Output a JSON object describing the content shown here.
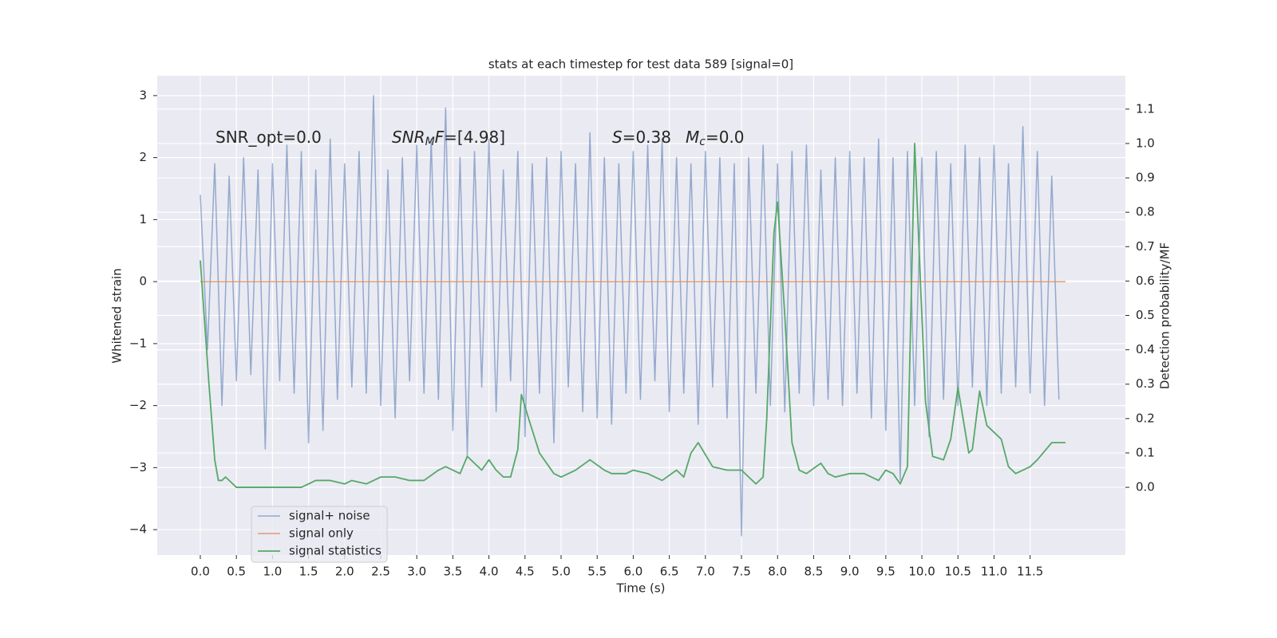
{
  "chart_data": {
    "type": "line",
    "title": "stats at each timestep for test data 589 [signal=0]",
    "xlabel": "Time (s)",
    "ylabel": "Whitened strain",
    "y2label": "Detection probability/MF",
    "annotations": [
      [
        "SNR_opt=0.0"
      ],
      [
        "SNR",
        "M",
        "F",
        "=[4.98]"
      ],
      [
        "S",
        "=0.38"
      ],
      [
        "M",
        "c",
        "=0.0"
      ]
    ],
    "grid": true,
    "legend": "lower left",
    "xlim": [
      -0.597,
      12.82
    ],
    "ylim": [
      -4.41,
      3.32
    ],
    "y2lim": [
      -0.197,
      1.197
    ],
    "xticks": [
      {
        "value": 0,
        "label": "0.0"
      },
      0.5,
      {
        "value": 1,
        "label": "1.0"
      },
      1.5,
      {
        "value": 2,
        "label": "2.0"
      },
      2.5,
      {
        "value": 3,
        "label": "3.0"
      },
      3.5,
      {
        "value": 4,
        "label": "4.0"
      },
      4.5,
      {
        "value": 5,
        "label": "5.0"
      },
      5.5,
      {
        "value": 6,
        "label": "6.0"
      },
      6.5,
      {
        "value": 7,
        "label": "7.0"
      },
      7.5,
      {
        "value": 8,
        "label": "8.0"
      },
      8.5,
      {
        "value": 9,
        "label": "9.0"
      },
      9.5,
      {
        "value": 10,
        "label": "10.0"
      },
      10.5,
      {
        "value": 11,
        "label": "11.0"
      },
      11.5
    ],
    "yticks": [
      {
        "value": -4,
        "label": "−4"
      },
      {
        "value": -3,
        "label": "−3"
      },
      {
        "value": -2,
        "label": "−2"
      },
      {
        "value": -1,
        "label": "−1"
      },
      0,
      1,
      2,
      3
    ],
    "y2ticks": [
      {
        "value": 0,
        "label": "0.0"
      },
      0.1,
      0.2,
      0.3,
      0.4,
      0.5,
      0.6,
      0.7,
      0.8,
      0.9,
      {
        "value": 1,
        "label": "1.0"
      },
      1.1
    ],
    "series": [
      {
        "name": "signal+ noise",
        "color": "#4c72b0",
        "x": [
          0,
          0.1,
          0.2,
          0.3,
          0.4,
          0.5,
          0.6,
          0.7,
          0.8,
          0.9,
          1,
          1.1,
          1.2,
          1.3,
          1.4,
          1.5,
          1.6,
          1.7,
          1.8,
          1.9,
          2,
          2.1,
          2.2,
          2.3,
          2.4,
          2.5,
          2.6,
          2.7,
          2.8,
          2.9,
          3,
          3.1,
          3.2,
          3.3,
          3.4,
          3.5,
          3.6,
          3.7,
          3.8,
          3.9,
          4,
          4.1,
          4.2,
          4.3,
          4.4,
          4.5,
          4.6,
          4.7,
          4.8,
          4.9,
          5,
          5.1,
          5.2,
          5.3,
          5.4,
          5.5,
          5.6,
          5.7,
          5.8,
          5.9,
          6,
          6.1,
          6.2,
          6.3,
          6.4,
          6.5,
          6.6,
          6.7,
          6.8,
          6.9,
          7,
          7.1,
          7.2,
          7.3,
          7.4,
          7.5,
          7.6,
          7.7,
          7.8,
          7.9,
          8,
          8.1,
          8.2,
          8.3,
          8.4,
          8.5,
          8.6,
          8.7,
          8.8,
          8.9,
          9,
          9.1,
          9.2,
          9.3,
          9.4,
          9.5,
          9.6,
          9.7,
          9.8,
          9.9,
          10,
          10.1,
          10.2,
          10.3,
          10.4,
          10.5,
          10.6,
          10.7,
          10.8,
          10.9,
          11,
          11.1,
          11.2,
          11.3,
          11.4,
          11.5,
          11.6,
          11.7,
          11.8,
          11.9
        ],
        "values": [
          1.4,
          -1.1,
          1.9,
          -2.0,
          1.7,
          -1.6,
          2.0,
          -1.5,
          1.8,
          -2.7,
          1.9,
          -1.6,
          2.2,
          -1.8,
          2.1,
          -2.6,
          1.8,
          -2.4,
          2.3,
          -1.9,
          1.9,
          -1.7,
          2.1,
          -1.8,
          3.0,
          -2.0,
          1.8,
          -2.2,
          2.0,
          -1.6,
          2.2,
          -1.8,
          2.3,
          -1.9,
          2.8,
          -2.4,
          2.0,
          -2.8,
          2.1,
          -1.7,
          2.3,
          -2.1,
          1.8,
          -1.6,
          2.1,
          -2.5,
          1.9,
          -1.8,
          2.0,
          -2.6,
          2.1,
          -1.7,
          1.9,
          -2.1,
          2.4,
          -2.2,
          2.0,
          -2.3,
          1.9,
          -1.8,
          2.1,
          -1.9,
          2.2,
          -1.6,
          2.3,
          -2.1,
          2.0,
          -1.8,
          1.9,
          -2.3,
          2.1,
          -1.7,
          2.0,
          -2.2,
          1.9,
          -4.1,
          2.0,
          -1.8,
          2.2,
          -2.0,
          1.9,
          -2.1,
          2.1,
          -1.8,
          2.2,
          -2.0,
          1.8,
          -1.9,
          2.0,
          -2.0,
          2.1,
          -1.8,
          2.0,
          -2.2,
          2.3,
          -2.4,
          2.0,
          -3.2,
          2.1,
          -2.0,
          2.0,
          -2.5,
          2.1,
          -1.9,
          1.9,
          -2.0,
          2.2,
          -1.7,
          2.0,
          -2.0,
          2.2,
          -1.8,
          1.9,
          -1.7,
          2.5,
          -1.8,
          2.1,
          -2.0,
          1.7,
          -1.9
        ]
      },
      {
        "name": "signal only",
        "color": "#dd8452",
        "x": [
          0,
          11.99
        ],
        "values": [
          0,
          0
        ]
      },
      {
        "name": "signal statistics",
        "color": "#55a868",
        "axis": "y2",
        "x": [
          0,
          0.12,
          0.2,
          0.25,
          0.3,
          0.35,
          0.45,
          0.5,
          0.7,
          1,
          1.4,
          1.5,
          1.6,
          1.8,
          2,
          2.1,
          2.3,
          2.5,
          2.7,
          2.9,
          3.1,
          3.3,
          3.4,
          3.6,
          3.7,
          3.8,
          3.9,
          4,
          4.1,
          4.2,
          4.3,
          4.4,
          4.45,
          4.55,
          4.7,
          4.9,
          5,
          5.2,
          5.4,
          5.6,
          5.7,
          5.9,
          6,
          6.2,
          6.4,
          6.6,
          6.7,
          6.8,
          6.9,
          7.1,
          7.3,
          7.5,
          7.6,
          7.7,
          7.8,
          7.85,
          7.95,
          8,
          8.1,
          8.2,
          8.3,
          8.4,
          8.6,
          8.7,
          8.8,
          9,
          9.2,
          9.4,
          9.5,
          9.6,
          9.7,
          9.8,
          9.9,
          10.05,
          10.15,
          10.3,
          10.4,
          10.5,
          10.65,
          10.7,
          10.8,
          10.9,
          11,
          11.1,
          11.2,
          11.3,
          11.5,
          11.6,
          11.8,
          11.9,
          11.99
        ],
        "values": [
          0.66,
          0.3,
          0.08,
          0.02,
          0.02,
          0.03,
          0.01,
          0,
          0,
          0,
          0,
          0.01,
          0.02,
          0.02,
          0.01,
          0.02,
          0.01,
          0.03,
          0.03,
          0.02,
          0.02,
          0.05,
          0.06,
          0.04,
          0.09,
          0.07,
          0.05,
          0.08,
          0.05,
          0.03,
          0.03,
          0.11,
          0.27,
          0.2,
          0.1,
          0.04,
          0.03,
          0.05,
          0.08,
          0.05,
          0.04,
          0.04,
          0.05,
          0.04,
          0.02,
          0.05,
          0.03,
          0.1,
          0.13,
          0.06,
          0.05,
          0.05,
          0.03,
          0.01,
          0.03,
          0.2,
          0.74,
          0.83,
          0.5,
          0.13,
          0.05,
          0.04,
          0.07,
          0.04,
          0.03,
          0.04,
          0.04,
          0.02,
          0.05,
          0.04,
          0.01,
          0.06,
          1.0,
          0.25,
          0.09,
          0.08,
          0.14,
          0.29,
          0.1,
          0.11,
          0.28,
          0.18,
          0.16,
          0.14,
          0.06,
          0.04,
          0.06,
          0.08,
          0.13,
          0.13,
          0.13
        ]
      }
    ]
  }
}
